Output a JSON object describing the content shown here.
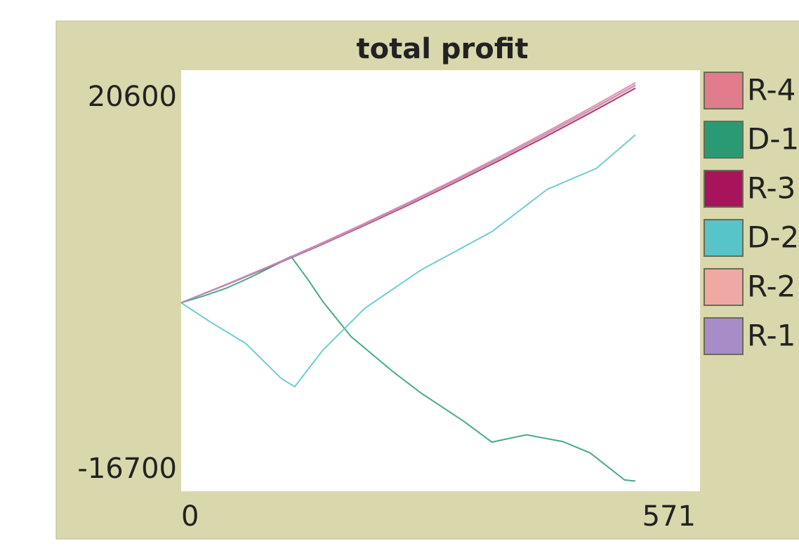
{
  "chart_data": {
    "type": "line",
    "title": "total profit",
    "xlim": [
      0,
      571
    ],
    "xticks": [
      0,
      571
    ],
    "ylim": [
      -16700,
      20600
    ],
    "yticks": [
      -16700,
      20600
    ],
    "grid": false,
    "legend": "right",
    "series": [
      {
        "name": "R-4",
        "color": "#e07c8c",
        "x": [
          0,
          50,
          100,
          150,
          200,
          250,
          300,
          350,
          400,
          450,
          500
        ],
        "values": [
          0,
          1635,
          3340,
          5115,
          6960,
          8875,
          10860,
          12915,
          15040,
          17235,
          19500
        ]
      },
      {
        "name": "D-1",
        "color": "#2a9a75",
        "x": [
          0,
          25,
          50,
          75,
          100,
          121,
          140,
          156,
          187,
          233,
          264,
          311,
          342,
          380,
          420,
          450,
          488,
          500
        ],
        "values": [
          0,
          600,
          1300,
          2200,
          3200,
          4100,
          2000,
          100,
          -3000,
          -6100,
          -8000,
          -10500,
          -12350,
          -11700,
          -12300,
          -13300,
          -15700,
          -15800
        ]
      },
      {
        "name": "R-3",
        "color": "#a8145c",
        "x": [
          0,
          50,
          100,
          150,
          200,
          250,
          300,
          350,
          400,
          450,
          500
        ],
        "values": [
          0,
          1594,
          3257,
          4987,
          6786,
          8653,
          10589,
          12592,
          14664,
          16804,
          19010
        ]
      },
      {
        "name": "D-2",
        "color": "#56c4c8",
        "x": [
          0,
          32,
          71,
          110,
          125,
          156,
          202,
          264,
          342,
          403,
          457,
          500
        ],
        "values": [
          0,
          -1700,
          -3600,
          -6700,
          -7440,
          -4200,
          -500,
          2900,
          6300,
          10050,
          11900,
          14880
        ]
      },
      {
        "name": "R-2",
        "color": "#f0a8a4",
        "x": [
          0,
          50,
          100,
          150,
          200,
          250,
          300,
          350,
          400,
          450,
          500
        ],
        "values": [
          0,
          1610,
          3290,
          5038,
          6856,
          8742,
          10697,
          12721,
          14814,
          16976,
          19208
        ]
      },
      {
        "name": "R-1",
        "color": "#a88cc8",
        "x": [
          0,
          50,
          100,
          150,
          200,
          250,
          300,
          350,
          400,
          450,
          500
        ],
        "values": [
          0,
          1619,
          3307,
          5064,
          6890,
          8786,
          10751,
          12786,
          14890,
          17063,
          19305
        ]
      }
    ]
  }
}
